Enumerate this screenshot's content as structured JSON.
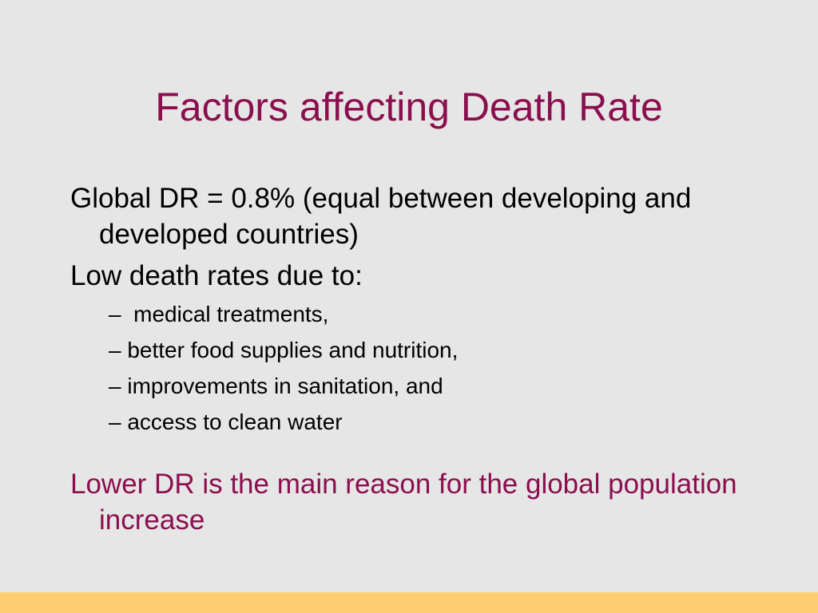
{
  "slide": {
    "title": "Factors affecting Death Rate",
    "point1": "Global DR = 0.8% (equal between developing and developed countries)",
    "point2": "Low death rates due to:",
    "subpoints": [
      "–  medical treatments,",
      "– better food supplies and nutrition,",
      "– improvements in sanitation, and",
      "– access to clean water"
    ],
    "conclusion": "Lower DR is the main reason for the global population increase"
  },
  "colors": {
    "background": "#e6e6e6",
    "accent": "#8b0f4e",
    "footer_bar": "#fdcf72"
  }
}
